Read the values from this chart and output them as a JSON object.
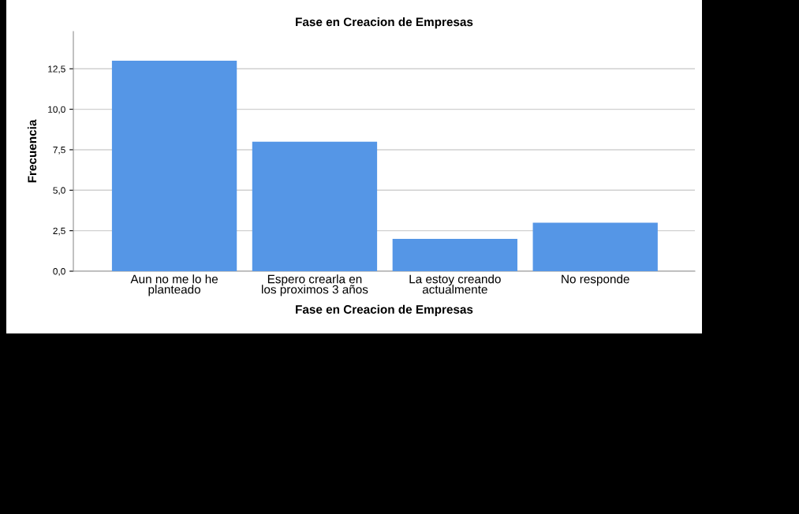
{
  "chart_data": {
    "type": "bar",
    "title": "Fase en Creacion de Empresas",
    "xlabel": "Fase en Creacion de Empresas",
    "ylabel": "Frecuencia",
    "categories": [
      "Aun no me lo he\nplanteado",
      "Espero crearla en\nlos proximos 3 años",
      "La estoy creando\nactualmente",
      "No responde"
    ],
    "values": [
      13,
      8,
      2,
      3
    ],
    "color": "#5596e6",
    "ylim": [
      0,
      14.8
    ],
    "yticks": [
      {
        "value": 0,
        "label": "0,0"
      },
      {
        "value": 2.5,
        "label": "2,5"
      },
      {
        "value": 5,
        "label": "5,0"
      },
      {
        "value": 7.5,
        "label": "7,5"
      },
      {
        "value": 10,
        "label": "10,0"
      },
      {
        "value": 12.5,
        "label": "12,5"
      }
    ],
    "grid": "y"
  }
}
